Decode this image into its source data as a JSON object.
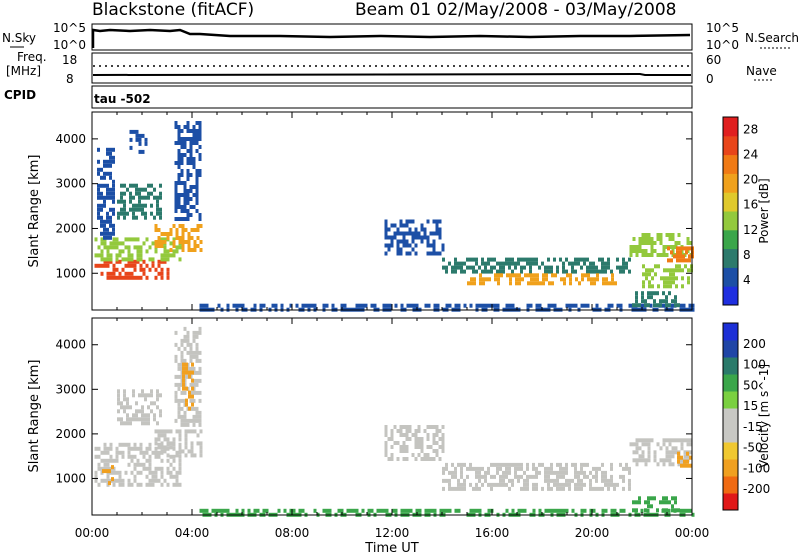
{
  "header": {
    "station": "Blackstone (fitACF)",
    "beam_date": "Beam 01  02/May/2008 - 03/May/2008"
  },
  "panel_nsky": {
    "left_label": "N.Sky",
    "left_tick_top": "10^5",
    "left_tick_bottom": "10^0",
    "right_label": "N.Search",
    "right_tick_top": "10^5",
    "right_tick_bottom": "10^0"
  },
  "panel_freq": {
    "left_label_top": "Freq.",
    "left_label_unit": "[MHz]",
    "left_tick_top": "18",
    "left_tick_bottom": "8",
    "right_label": "Nave",
    "right_tick_top": "60",
    "right_tick_bottom": "0"
  },
  "panel_cpid": {
    "label": "CPID",
    "value": "tau -502"
  },
  "colors": {
    "power_scale": [
      "#1f2fe0",
      "#1c4fa6",
      "#2c7a6c",
      "#3aa64a",
      "#93c93d",
      "#e0c92c",
      "#f0a11c",
      "#f07a15",
      "#e8451a",
      "#e01f1f"
    ],
    "velocity_scale": [
      "#e01818",
      "#f06a12",
      "#f0a020",
      "#f0c830",
      "#c8c8c4",
      "#c8c8c4",
      "#7ad040",
      "#3aa64a",
      "#2a7a6a",
      "#1f45a6",
      "#1c2fd6"
    ],
    "ground_scatter": "#c4c4c0"
  },
  "chart_data": [
    {
      "type": "heatmap",
      "panel": "power",
      "xlabel": "Time UT",
      "ylabel": "Slant Range [km]",
      "xlim": [
        0,
        24
      ],
      "x_tick_labels": [
        "00:00",
        "04:00",
        "08:00",
        "12:00",
        "16:00",
        "20:00",
        "00:00"
      ],
      "x_ticks": [
        0,
        4,
        8,
        12,
        16,
        20,
        24
      ],
      "ylim": [
        180,
        4600
      ],
      "y_tick_labels": [
        "1000",
        "2000",
        "3000",
        "4000"
      ],
      "y_ticks": [
        1000,
        2000,
        3000,
        4000
      ],
      "colorbar_label": "Power [dB]",
      "colorbar_ticks": [
        "4",
        "8",
        "12",
        "16",
        "20",
        "24",
        "28"
      ],
      "colorbar_range": [
        0,
        30
      ],
      "regions": [
        {
          "t0": 0.1,
          "t1": 3.1,
          "r0": 900,
          "r1": 1300,
          "value": 26
        },
        {
          "t0": 0.1,
          "t1": 3.5,
          "r0": 1300,
          "r1": 1800,
          "value": 14
        },
        {
          "t0": 0.2,
          "t1": 0.9,
          "r0": 1800,
          "r1": 3800,
          "value": 5
        },
        {
          "t0": 1.0,
          "t1": 2.8,
          "r0": 2200,
          "r1": 3000,
          "value": 6
        },
        {
          "t0": 2.5,
          "t1": 4.4,
          "r0": 1500,
          "r1": 2100,
          "value": 18
        },
        {
          "t0": 3.3,
          "t1": 4.3,
          "r0": 2200,
          "r1": 4400,
          "value": 5
        },
        {
          "t0": 1.5,
          "t1": 2.2,
          "r0": 3700,
          "r1": 4200,
          "value": 4
        },
        {
          "t0": 4.3,
          "t1": 24.0,
          "r0": 180,
          "r1": 320,
          "value": 5
        },
        {
          "t0": 11.7,
          "t1": 14.0,
          "r0": 1400,
          "r1": 2200,
          "value": 5
        },
        {
          "t0": 14.0,
          "t1": 21.5,
          "r0": 1000,
          "r1": 1350,
          "value": 6
        },
        {
          "t0": 15.0,
          "t1": 21.0,
          "r0": 750,
          "r1": 1000,
          "value": 18
        },
        {
          "t0": 21.5,
          "t1": 24.0,
          "r0": 1400,
          "r1": 1900,
          "value": 12
        },
        {
          "t0": 23.0,
          "t1": 24.0,
          "r0": 1300,
          "r1": 1600,
          "value": 22
        },
        {
          "t0": 22.0,
          "t1": 24.0,
          "r0": 700,
          "r1": 1200,
          "value": 14
        },
        {
          "t0": 21.6,
          "t1": 23.5,
          "r0": 300,
          "r1": 600,
          "value": 6
        }
      ]
    },
    {
      "type": "heatmap",
      "panel": "velocity",
      "xlabel": "Time UT",
      "ylabel": "Slant Range [km]",
      "xlim": [
        0,
        24
      ],
      "x_tick_labels": [
        "00:00",
        "04:00",
        "08:00",
        "12:00",
        "16:00",
        "20:00",
        "00:00"
      ],
      "x_ticks": [
        0,
        4,
        8,
        12,
        16,
        20,
        24
      ],
      "ylim": [
        180,
        4600
      ],
      "y_tick_labels": [
        "1000",
        "2000",
        "3000",
        "4000"
      ],
      "y_ticks": [
        1000,
        2000,
        3000,
        4000
      ],
      "colorbar_label": "Velocity [m s^-1]",
      "colorbar_ticks": [
        "200",
        "100",
        "50",
        "15",
        "-15",
        "-50",
        "-100",
        "-200"
      ],
      "regions": [
        {
          "t0": 0.1,
          "t1": 3.5,
          "r0": 900,
          "r1": 1800,
          "value": 0
        },
        {
          "t0": 0.4,
          "t1": 0.8,
          "r0": 900,
          "r1": 1300,
          "value": -60
        },
        {
          "t0": 1.0,
          "t1": 2.8,
          "r0": 2200,
          "r1": 3000,
          "value": 0
        },
        {
          "t0": 2.5,
          "t1": 4.4,
          "r0": 1500,
          "r1": 2100,
          "value": 0
        },
        {
          "t0": 3.3,
          "t1": 4.3,
          "r0": 2200,
          "r1": 4400,
          "value": 0
        },
        {
          "t0": 3.6,
          "t1": 4.0,
          "r0": 2600,
          "r1": 3600,
          "value": -40
        },
        {
          "t0": 4.3,
          "t1": 24.0,
          "r0": 180,
          "r1": 320,
          "value": 30
        },
        {
          "t0": 11.7,
          "t1": 14.0,
          "r0": 1400,
          "r1": 2200,
          "value": 0
        },
        {
          "t0": 14.0,
          "t1": 21.5,
          "r0": 750,
          "r1": 1350,
          "value": 0
        },
        {
          "t0": 21.5,
          "t1": 24.0,
          "r0": 1300,
          "r1": 1900,
          "value": 0
        },
        {
          "t0": 23.4,
          "t1": 24.0,
          "r0": 1300,
          "r1": 1600,
          "value": -30
        },
        {
          "t0": 21.6,
          "t1": 23.5,
          "r0": 300,
          "r1": 600,
          "value": 30
        }
      ]
    }
  ]
}
